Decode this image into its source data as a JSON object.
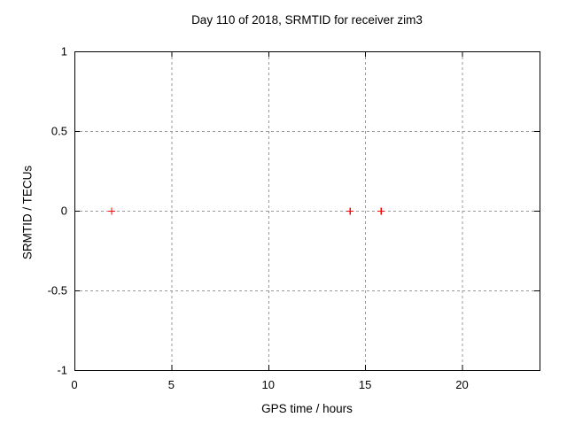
{
  "chart_data": {
    "type": "scatter",
    "title": "Day 110 of 2018, SRMTID for receiver zim3",
    "xlabel": "GPS time / hours",
    "ylabel": "SRMTID / TECUs",
    "xlim": [
      0,
      24
    ],
    "ylim": [
      -1,
      1
    ],
    "xticks": [
      {
        "value": 0,
        "label": "0"
      },
      {
        "value": 5,
        "label": "5"
      },
      {
        "value": 10,
        "label": "10"
      },
      {
        "value": 15,
        "label": "15"
      },
      {
        "value": 20,
        "label": "20"
      }
    ],
    "yticks": [
      {
        "value": 1,
        "label": "1"
      },
      {
        "value": 0.5,
        "label": "0.5"
      },
      {
        "value": 0,
        "label": "0"
      },
      {
        "value": -0.5,
        "label": "-0.5"
      },
      {
        "value": -1,
        "label": "-1"
      }
    ],
    "grid": true,
    "legend": "none",
    "series": [
      {
        "name": "SRMTID",
        "marker": "plus",
        "color": "#ff0000",
        "points": [
          {
            "x": 1.9,
            "y": 0.0
          },
          {
            "x": 14.2,
            "y": 0.0
          },
          {
            "x": 15.8,
            "y": 0.0
          }
        ]
      }
    ],
    "colors": {
      "border": "#000000",
      "grid": "#999999",
      "background": "#ffffff",
      "text": "#000000"
    }
  }
}
